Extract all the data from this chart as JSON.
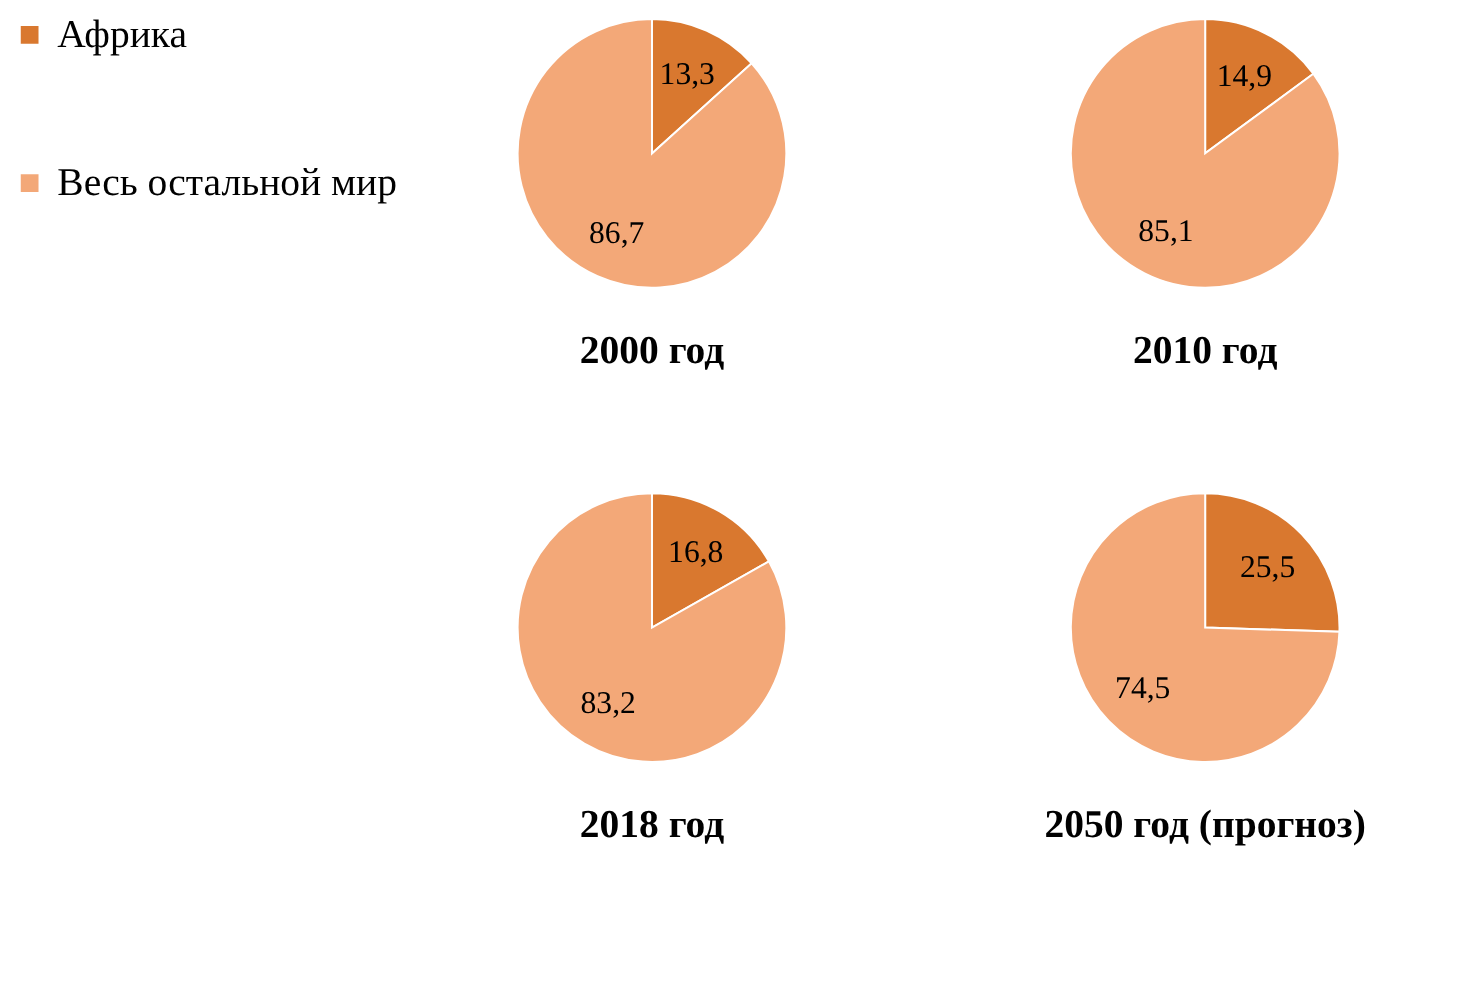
{
  "chart_data": [
    {
      "type": "pie",
      "title": "2000 год",
      "categories": [
        "Африка",
        "Весь остальной мир"
      ],
      "values": [
        13.3,
        86.7
      ],
      "colors": [
        "#d9782f",
        "#f3a878"
      ],
      "value_labels": [
        "13,3",
        "86,7"
      ],
      "legend": "left"
    },
    {
      "type": "pie",
      "title": "2010 год",
      "values": [
        14.9,
        85.1
      ],
      "colors": [
        "#d9782f",
        "#f3a878"
      ],
      "value_labels": [
        "14,9",
        "85,1"
      ]
    },
    {
      "type": "pie",
      "title": "2018 год",
      "values": [
        16.8,
        83.2
      ],
      "colors": [
        "#d9782f",
        "#f3a878"
      ],
      "value_labels": [
        "16,8",
        "83,2"
      ]
    },
    {
      "type": "pie",
      "title": "2050 год (прогноз)",
      "values": [
        25.5,
        74.5
      ],
      "colors": [
        "#d9782f",
        "#f3a878"
      ],
      "value_labels": [
        "25,5",
        "74,5"
      ]
    }
  ]
}
